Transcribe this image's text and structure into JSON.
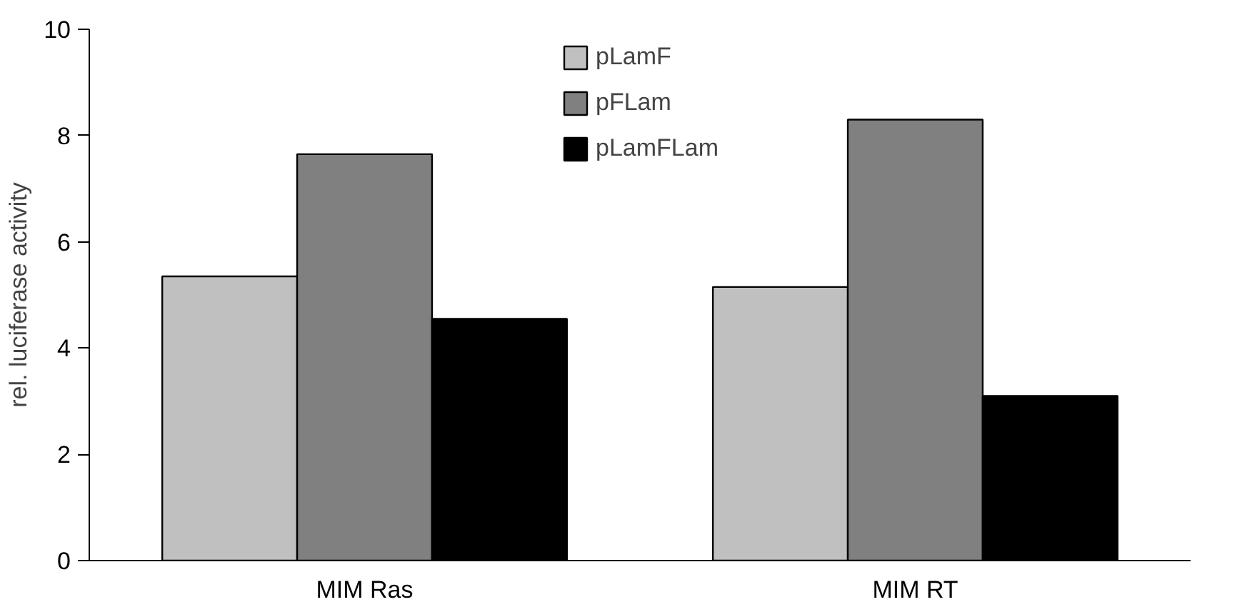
{
  "chart_data": {
    "type": "bar",
    "ylabel": "rel. luciferase activity",
    "categories": [
      "MIM Ras",
      "MIM RT"
    ],
    "series": [
      {
        "name": "pLamF",
        "color": "#c0c0c0",
        "values": [
          5.35,
          5.15
        ]
      },
      {
        "name": "pFLam",
        "color": "#808080",
        "values": [
          7.65,
          8.3
        ]
      },
      {
        "name": "pLamFLam",
        "color": "#000000",
        "values": [
          4.55,
          3.1
        ]
      }
    ],
    "ylim": [
      0,
      10
    ],
    "yticks": [
      0,
      2,
      4,
      6,
      8,
      10
    ],
    "grid": false,
    "legend": "top"
  }
}
